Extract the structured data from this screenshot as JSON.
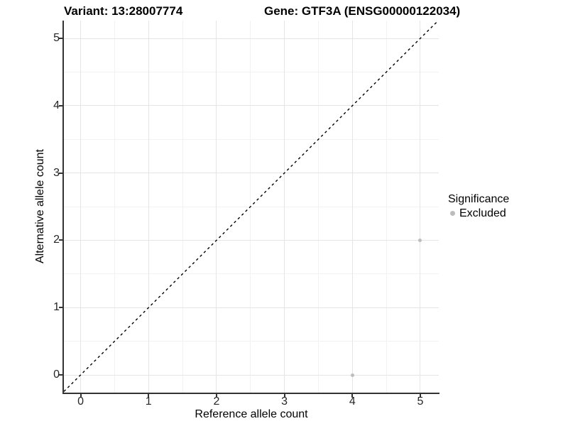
{
  "chart_data": {
    "type": "scatter",
    "titles": {
      "left": "Variant: 13:28007774",
      "right": "Gene: GTF3A (ENSG00000122034)"
    },
    "xlabel": "Reference allele count",
    "ylabel": "Alternative allele count",
    "xlim": [
      -0.246,
      5.272
    ],
    "ylim": [
      -0.263,
      5.264
    ],
    "x_ticks": [
      0,
      1,
      2,
      3,
      4,
      5
    ],
    "y_ticks": [
      0,
      1,
      2,
      3,
      4,
      5
    ],
    "x_minor_ticks": [
      0.5,
      1.5,
      2.5,
      3.5,
      4.5
    ],
    "y_minor_ticks": [
      0.5,
      1.5,
      2.5,
      3.5,
      4.5
    ],
    "grid": "major+minor",
    "identity_line": {
      "slope": 1,
      "intercept": 0,
      "style": "dashed"
    },
    "series": [
      {
        "name": "Excluded",
        "color": "#bdbdbd",
        "points": [
          {
            "x": 4,
            "y": 0
          },
          {
            "x": 5,
            "y": 2
          }
        ]
      }
    ],
    "legend": {
      "title": "Significance",
      "position": "right",
      "entries": [
        {
          "label": "Excluded",
          "color": "#bdbdbd"
        }
      ]
    }
  },
  "colors": {
    "background": "#ffffff",
    "grid_major": "#e5e5e5",
    "grid_minor": "#f2f2f2",
    "axis_line": "#333333",
    "tick_mark": "#333333",
    "tick_text": "#262626",
    "title_text": "#000000",
    "point": "#bdbdbd",
    "identity_line": "#000000"
  }
}
